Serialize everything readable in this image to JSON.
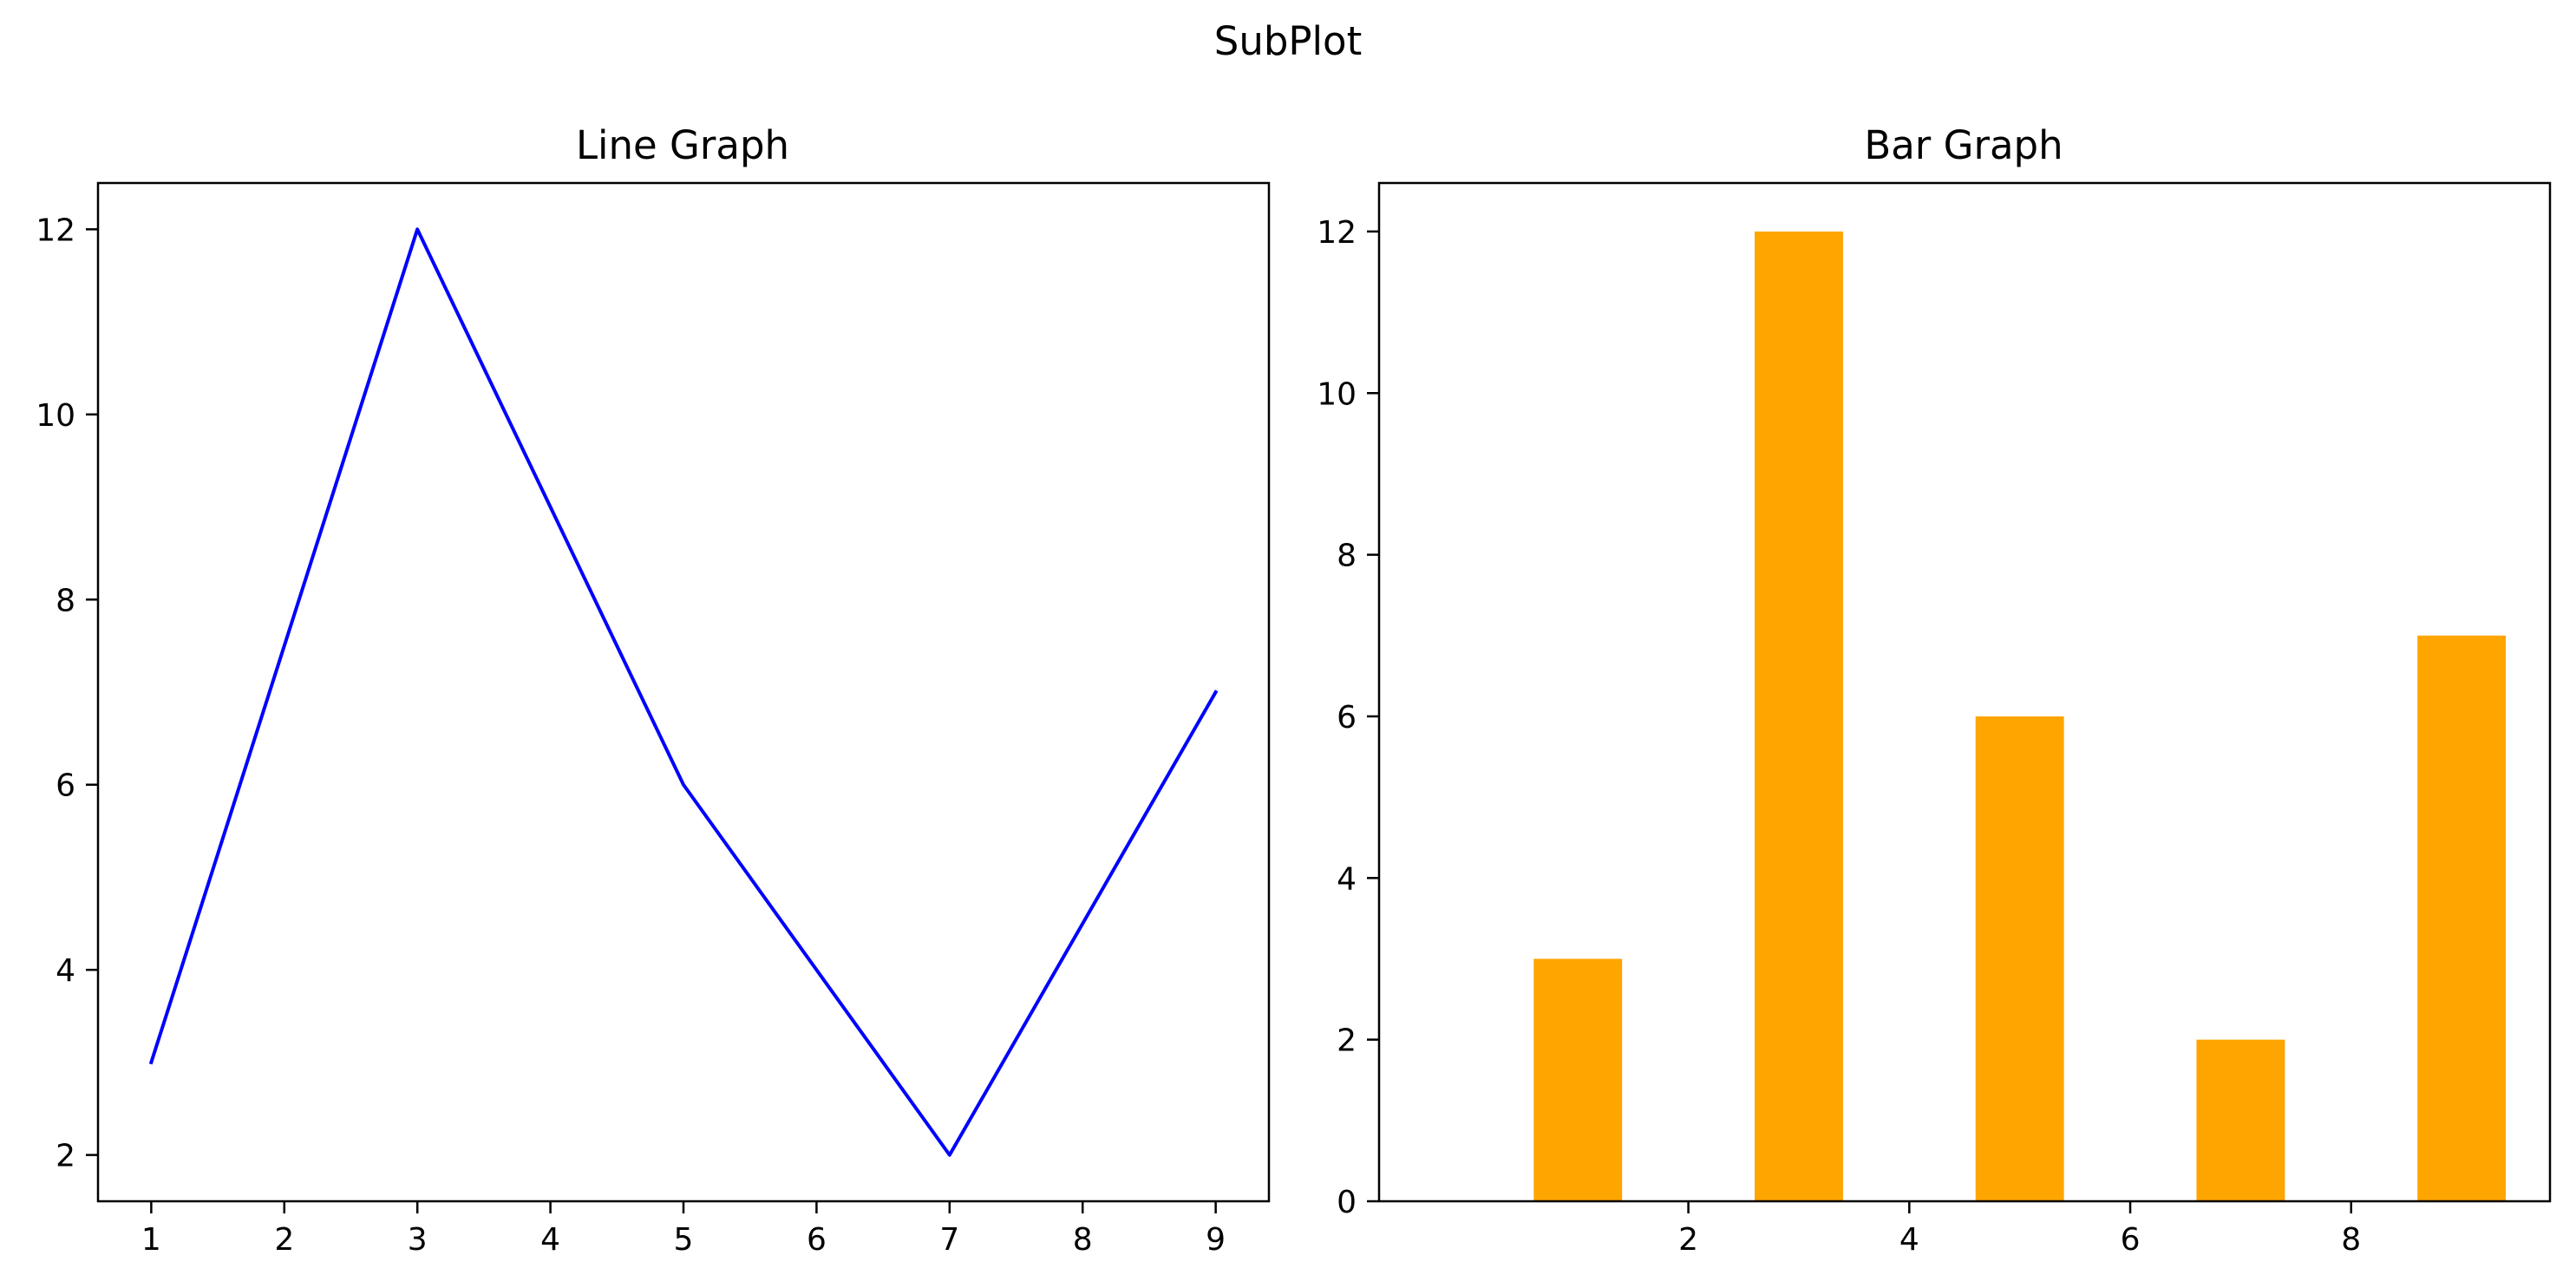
{
  "figure": {
    "suptitle": "SubPlot"
  },
  "chart_data": [
    {
      "type": "line",
      "title": "Line Graph",
      "xlabel": "",
      "ylabel": "",
      "x": [
        1,
        3,
        5,
        7,
        9
      ],
      "values": [
        3,
        12,
        6,
        2,
        7
      ],
      "color": "#0000ff",
      "xlim": [
        0.6,
        9.4
      ],
      "ylim": [
        1.5,
        12.5
      ],
      "xticks": [
        1,
        2,
        3,
        4,
        5,
        6,
        7,
        8,
        9
      ],
      "yticks": [
        2,
        4,
        6,
        8,
        10,
        12
      ],
      "grid": false,
      "legend": "none"
    },
    {
      "type": "bar",
      "title": "Bar Graph",
      "xlabel": "",
      "ylabel": "",
      "x": [
        1,
        3,
        5,
        7,
        9
      ],
      "values": [
        3,
        12,
        6,
        2,
        7
      ],
      "bar_width": 0.8,
      "color": "#ffa500",
      "xlim": [
        -0.8,
        9.8
      ],
      "ylim": [
        0,
        12.6
      ],
      "xticks": [
        2,
        4,
        6,
        8
      ],
      "yticks": [
        0,
        2,
        4,
        6,
        8,
        10,
        12
      ],
      "grid": false,
      "legend": "none"
    }
  ]
}
